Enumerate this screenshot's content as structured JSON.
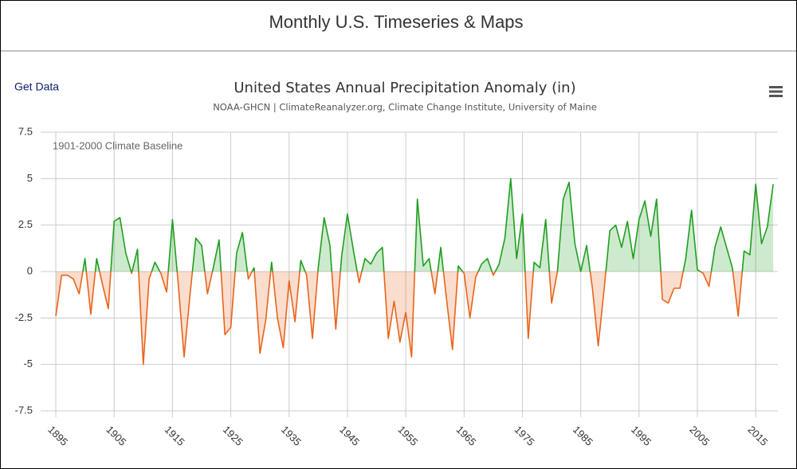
{
  "page_title": "Monthly U.S. Timeseries & Maps",
  "link": "Get Data",
  "chart_data": {
    "type": "area",
    "title": "United States Annual Precipitation Anomaly (in)",
    "subtitle": "NOAA-GHCN | ClimateReanalyzer.org, Climate Change Institute, University of Maine",
    "annotation": "1901-2000 Climate Baseline",
    "x": [
      1895,
      1896,
      1897,
      1898,
      1899,
      1900,
      1901,
      1902,
      1903,
      1904,
      1905,
      1906,
      1907,
      1908,
      1909,
      1910,
      1911,
      1912,
      1913,
      1914,
      1915,
      1916,
      1917,
      1918,
      1919,
      1920,
      1921,
      1922,
      1923,
      1924,
      1925,
      1926,
      1927,
      1928,
      1929,
      1930,
      1931,
      1932,
      1933,
      1934,
      1935,
      1936,
      1937,
      1938,
      1939,
      1940,
      1941,
      1942,
      1943,
      1944,
      1945,
      1946,
      1947,
      1948,
      1949,
      1950,
      1951,
      1952,
      1953,
      1954,
      1955,
      1956,
      1957,
      1958,
      1959,
      1960,
      1961,
      1962,
      1963,
      1964,
      1965,
      1966,
      1967,
      1968,
      1969,
      1970,
      1971,
      1972,
      1973,
      1974,
      1975,
      1976,
      1977,
      1978,
      1979,
      1980,
      1981,
      1982,
      1983,
      1984,
      1985,
      1986,
      1987,
      1988,
      1989,
      1990,
      1991,
      1992,
      1993,
      1994,
      1995,
      1996,
      1997,
      1998,
      1999,
      2000,
      2001,
      2002,
      2003,
      2004,
      2005,
      2006,
      2007,
      2008,
      2009,
      2010,
      2011,
      2012,
      2013,
      2014,
      2015,
      2016,
      2017,
      2018
    ],
    "values": [
      -2.4,
      -0.2,
      -0.2,
      -0.4,
      -1.2,
      0.7,
      -2.3,
      0.7,
      -0.7,
      -2.0,
      2.7,
      2.9,
      1.0,
      -0.1,
      1.2,
      -5.0,
      -0.4,
      0.5,
      -0.1,
      -1.1,
      2.8,
      -0.7,
      -4.6,
      -1.3,
      1.8,
      1.4,
      -1.2,
      0.2,
      1.7,
      -3.4,
      -3.0,
      1.0,
      2.1,
      -0.4,
      0.2,
      -4.4,
      -2.6,
      0.5,
      -2.5,
      -4.1,
      -0.5,
      -2.7,
      0.6,
      -0.2,
      -3.6,
      0.2,
      2.9,
      1.4,
      -3.1,
      0.8,
      3.1,
      1.2,
      -0.6,
      0.7,
      0.4,
      1.0,
      1.3,
      -3.6,
      -1.6,
      -3.8,
      -2.2,
      -4.6,
      3.9,
      0.3,
      0.7,
      -1.2,
      1.3,
      -1.5,
      -4.2,
      0.3,
      -0.1,
      -2.5,
      -0.3,
      0.4,
      0.7,
      -0.2,
      0.4,
      1.8,
      5.0,
      0.7,
      3.1,
      -3.6,
      0.5,
      0.2,
      2.8,
      -1.7,
      0.0,
      3.9,
      4.8,
      1.5,
      0.0,
      1.4,
      -0.9,
      -4.0,
      -1.0,
      2.2,
      2.5,
      1.3,
      2.7,
      0.7,
      2.8,
      3.8,
      1.9,
      3.9,
      -1.5,
      -1.7,
      -0.9,
      -0.9,
      0.7,
      3.3,
      0.1,
      -0.1,
      -0.8,
      1.3,
      2.4,
      1.3,
      0.2,
      -2.4,
      1.1,
      0.9,
      4.7,
      1.5,
      2.4,
      4.7
    ],
    "color": "#1f9e1f",
    "negative_color": "#e8641b",
    "xlim": [
      1892.4,
      2018.8
    ],
    "xticks": [
      1895,
      1905,
      1915,
      1925,
      1935,
      1945,
      1955,
      1965,
      1975,
      1985,
      1995,
      2005,
      2015
    ],
    "ylim": [
      -7.5,
      7.5
    ],
    "yticks": [
      -7.5,
      -5,
      -2.5,
      0,
      2.5,
      5,
      7.5
    ],
    "grid": true
  }
}
